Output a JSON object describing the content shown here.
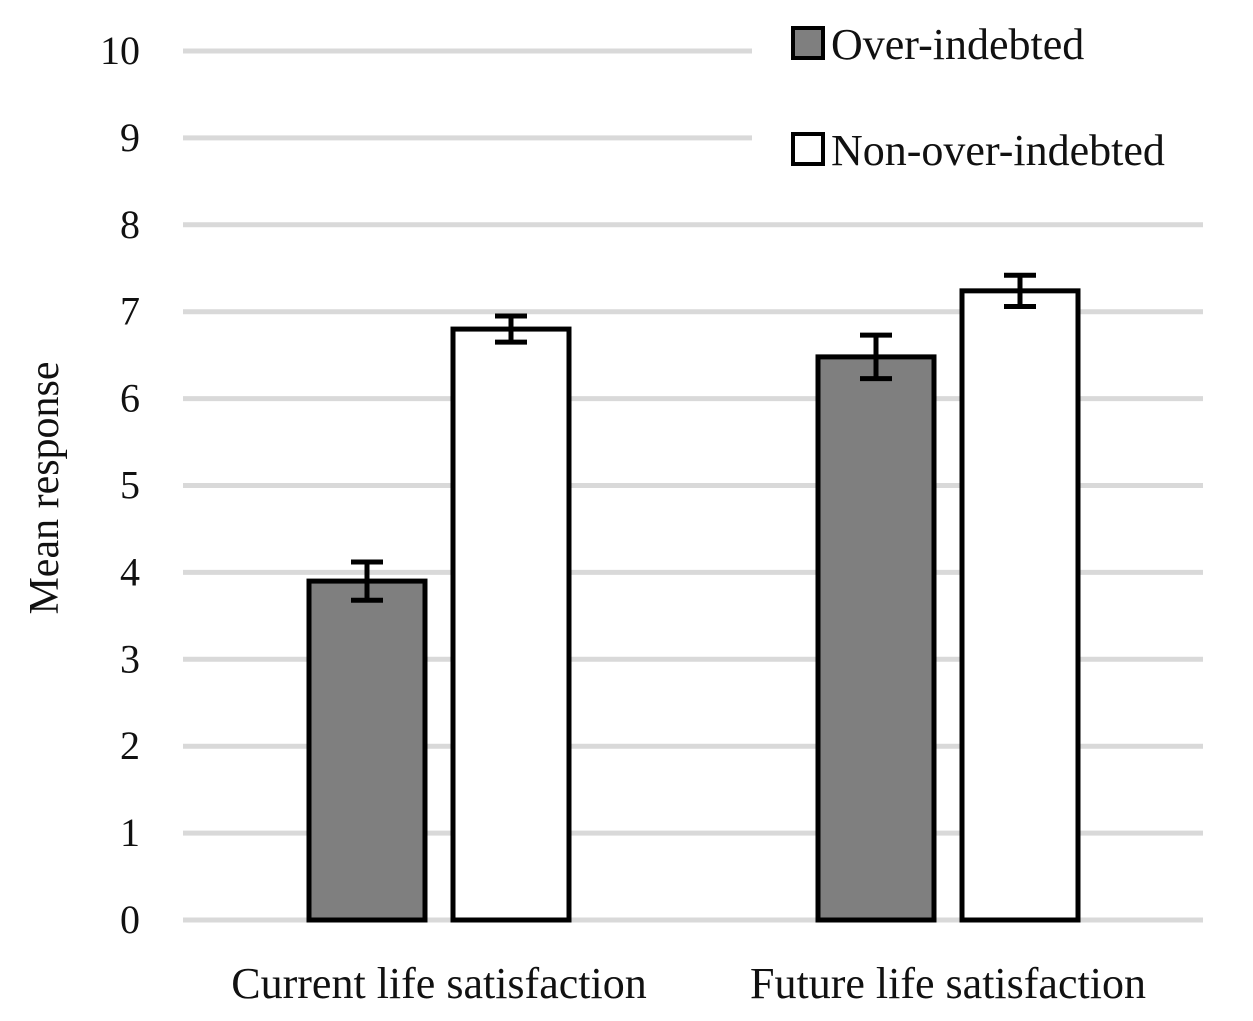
{
  "chart_data": {
    "type": "bar",
    "title": "",
    "xlabel": "",
    "ylabel": "Mean response",
    "ylim": [
      0,
      10
    ],
    "yticks": [
      "0",
      "1",
      "2",
      "3",
      "4",
      "5",
      "6",
      "7",
      "8",
      "9",
      "10"
    ],
    "grid": true,
    "legend_position": "top-right",
    "categories": [
      "Current life satisfaction",
      "Future life satisfaction"
    ],
    "series": [
      {
        "name": "Over-indebted",
        "color": "#7f7f7f",
        "values": [
          3.9,
          6.48
        ],
        "error": [
          0.22,
          0.25
        ]
      },
      {
        "name": "Non-over-indebted",
        "color": "#ffffff",
        "values": [
          6.8,
          7.24
        ],
        "error": [
          0.15,
          0.18
        ]
      }
    ]
  }
}
